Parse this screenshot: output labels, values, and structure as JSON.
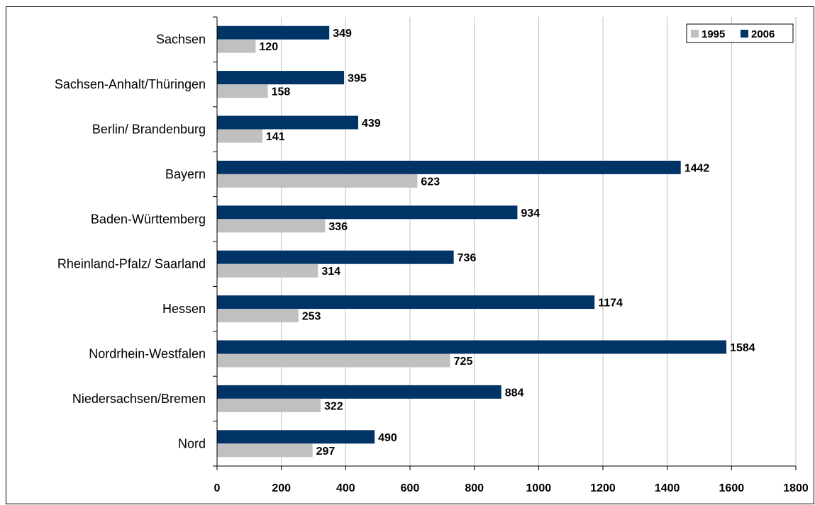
{
  "chart_data": {
    "type": "bar",
    "orientation": "horizontal",
    "title": "",
    "xlabel": "",
    "ylabel": "",
    "categories": [
      "Sachsen",
      "Sachsen-Anhalt/Thüringen",
      "Berlin/ Brandenburg",
      "Bayern",
      "Baden-Württemberg",
      "Rheinland-Pfalz/ Saarland",
      "Hessen",
      "Nordrhein-Westfalen",
      "Niedersachsen/Bremen",
      "Nord"
    ],
    "series": [
      {
        "name": "2006",
        "color": "#003366",
        "values": [
          349,
          395,
          439,
          1442,
          934,
          736,
          1174,
          1584,
          884,
          490
        ]
      },
      {
        "name": "1995",
        "color": "#c0c0c0",
        "values": [
          120,
          158,
          141,
          623,
          336,
          314,
          253,
          725,
          322,
          297
        ]
      }
    ],
    "legend_order": [
      "1995",
      "2006"
    ],
    "xlim": [
      0,
      1800
    ],
    "xticks": [
      0,
      200,
      400,
      600,
      800,
      1000,
      1200,
      1400,
      1600,
      1800
    ],
    "grid": "vertical",
    "legend_position": "top-right",
    "data_labels": true
  }
}
